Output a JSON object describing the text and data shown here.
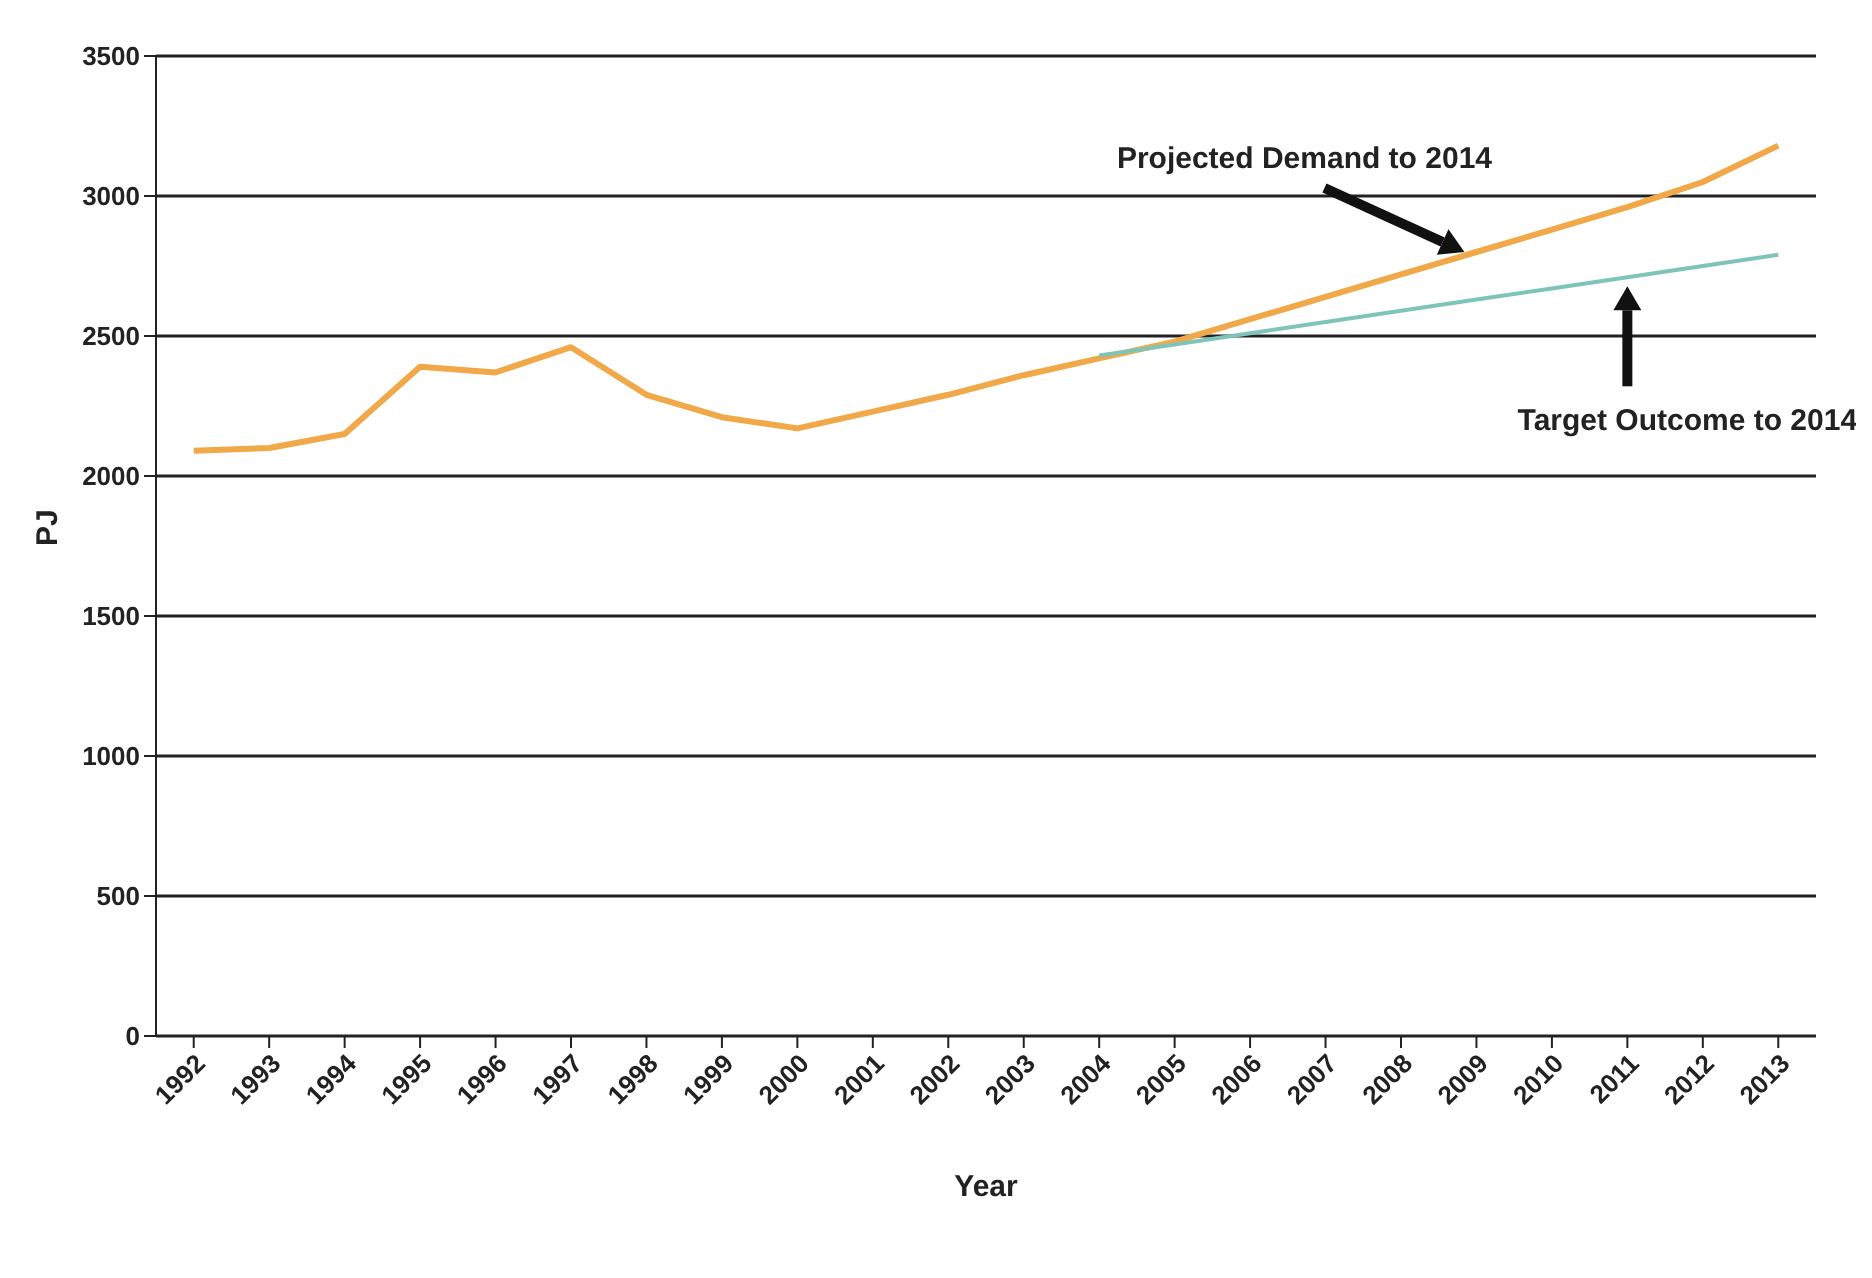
{
  "chart_data": {
    "type": "line",
    "xlabel": "Year",
    "ylabel": "PJ",
    "categories": [
      "1992",
      "1993",
      "1994",
      "1995",
      "1996",
      "1997",
      "1998",
      "1999",
      "2000",
      "2001",
      "2002",
      "2003",
      "2004",
      "2005",
      "2006",
      "2007",
      "2008",
      "2009",
      "2010",
      "2011",
      "2012",
      "2013"
    ],
    "series": [
      {
        "color": "#f0a848",
        "values": [
          2090,
          2100,
          2150,
          2390,
          2370,
          2460,
          2290,
          2210,
          2170,
          2230,
          2290,
          2360,
          2420,
          2480,
          2560,
          2640,
          2720,
          2800,
          2880,
          2960,
          3050,
          3180
        ]
      },
      {
        "color": "#7fc4b8",
        "values": [
          null,
          null,
          null,
          null,
          null,
          null,
          null,
          null,
          null,
          null,
          null,
          null,
          2430,
          2470,
          2510,
          2550,
          2590,
          2630,
          2670,
          2710,
          2750,
          2790
        ]
      }
    ],
    "ylim": [
      0,
      3500
    ],
    "yticks": [
      0,
      500,
      1000,
      1500,
      2000,
      2500,
      3000,
      3500
    ],
    "grid": "y",
    "marker": "none",
    "line_style": "solid",
    "annotations": [
      "Projected Demand to 2014",
      "Target Outcome to 2014"
    ]
  }
}
